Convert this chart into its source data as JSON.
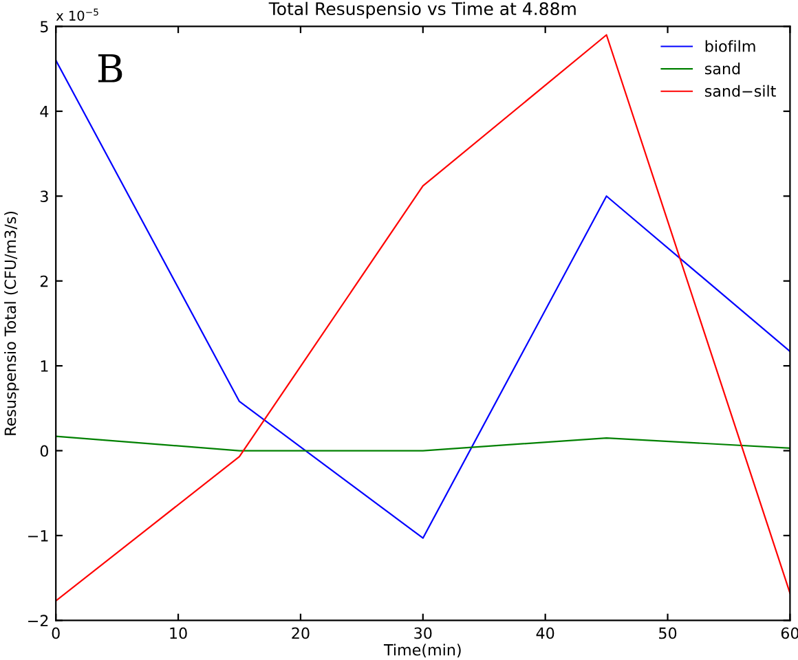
{
  "chart_data": {
    "type": "line",
    "title": "Total Resuspensio vs Time at 4.88m",
    "xlabel": "Time(min)",
    "ylabel": "Resuspensio Total (CFU/m3/s)",
    "x": [
      0,
      15,
      30,
      45,
      60
    ],
    "series": [
      {
        "name": "biofilm",
        "color": "#0000ff",
        "values": [
          4.6,
          0.58,
          -1.03,
          3.0,
          1.17
        ]
      },
      {
        "name": "sand",
        "color": "#008000",
        "values": [
          0.17,
          0.0,
          0.0,
          0.15,
          0.03
        ]
      },
      {
        "name": "sand−silt",
        "color": "#ff0000",
        "values": [
          -1.77,
          -0.07,
          3.12,
          4.9,
          -1.68
        ]
      }
    ],
    "xlim": [
      0,
      60
    ],
    "xticks": [
      0,
      10,
      20,
      30,
      40,
      50,
      60
    ],
    "ylim": [
      -2,
      5
    ],
    "yticks": [
      -2,
      -1,
      0,
      1,
      2,
      3,
      4,
      5
    ],
    "annotations": [
      "x 10$^{−5}$",
      "B"
    ],
    "legend": "top right",
    "grid": false,
    "line_style": "solid",
    "marker": "none"
  }
}
